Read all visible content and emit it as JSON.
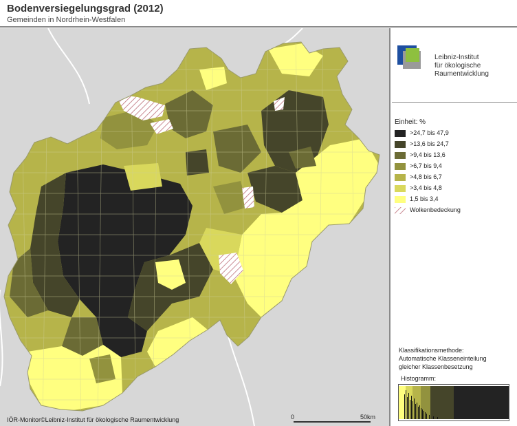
{
  "header": {
    "title": "Bodenversiegelungsgrad (2012)",
    "subtitle": "Gemeinden in Nordrhein-Westfalen"
  },
  "footer": {
    "copyright": "IÖR-Monitor©Leibniz-Institut für ökologische Raumentwicklung",
    "scale_start": "0",
    "scale_end": "50km"
  },
  "logo": {
    "line1": "Leibniz-Institut",
    "line2": "für ökologische",
    "line3": "Raumentwicklung",
    "colors": {
      "blue": "#1e4fa0",
      "green": "#8ec03f",
      "grey": "#9a9a9a"
    }
  },
  "legend": {
    "unit": "Einheit: %",
    "classes": [
      {
        "label": ">24,7 bis 47,9",
        "color": "#232323"
      },
      {
        "label": ">13,6 bis 24,7",
        "color": "#45452a"
      },
      {
        "label": ">9,4 bis 13,6",
        "color": "#6b6b35"
      },
      {
        "label": ">6,7 bis 9,4",
        "color": "#92923e"
      },
      {
        "label": ">4,8 bis 6,7",
        "color": "#b6b44a"
      },
      {
        "label": ">3,4 bis 4,8",
        "color": "#d9d85c"
      },
      {
        "label": "1,5 bis 3,4",
        "color": "#ffff80"
      }
    ],
    "cloud_label": "Wolkenbedeckung"
  },
  "method": {
    "line1": "Klassifikationsmethode:",
    "line2": "Automatische Klasseneinteilung",
    "line3": "gleicher Klassenbesetzung",
    "histogram_label": "Histogramm:"
  }
}
